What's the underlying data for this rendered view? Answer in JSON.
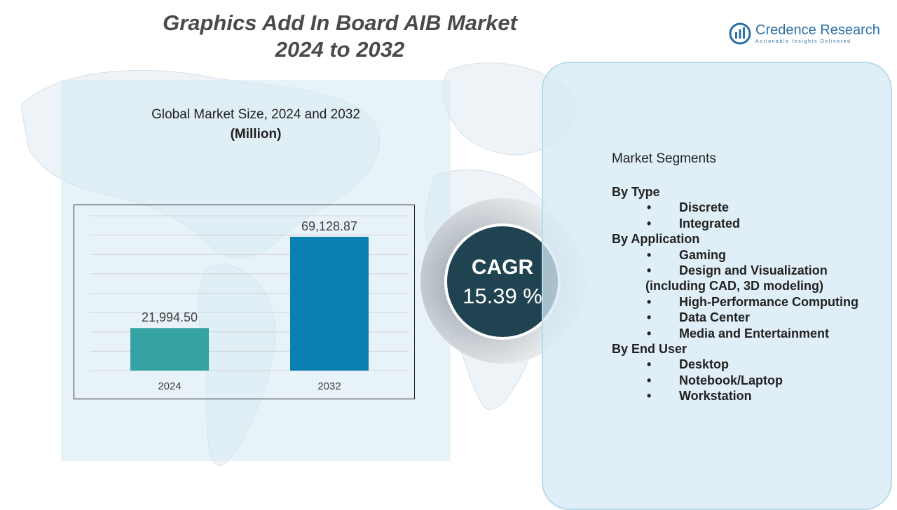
{
  "title": {
    "line1": "Graphics Add In Board AIB Market",
    "line2": "2024 to 2032"
  },
  "logo": {
    "name": "Credence Research",
    "tagline": "Actionable Insights Delivered"
  },
  "chart_data": {
    "type": "bar",
    "title": "Global Market Size, 2024 and 2032",
    "unit": "(Million)",
    "categories": [
      "2024",
      "2032"
    ],
    "values": [
      21994.5,
      69128.87
    ],
    "value_labels": [
      "21,994.50",
      "69,128.87"
    ],
    "colors": [
      "#35a3a3",
      "#0a7fb1"
    ],
    "ylim": [
      0,
      80000
    ],
    "grid": true
  },
  "cagr": {
    "label": "CAGR",
    "value": "15.39 %"
  },
  "segments": {
    "heading": "Market Segments",
    "groups": [
      {
        "title": "By Type",
        "items": [
          {
            "text": "Discrete",
            "bullet": "•"
          },
          {
            "text": "Integrated",
            "bullet": "•"
          }
        ]
      },
      {
        "title": "By Application",
        "items": [
          {
            "text": "Gaming",
            "bullet": "•"
          },
          {
            "text": "Design and Visualization",
            "bullet": "•"
          },
          {
            "text": "(including CAD, 3D modeling)",
            "bullet": "",
            "continuation": true
          },
          {
            "text": "High-Performance Computing",
            "bullet": "•"
          },
          {
            "text": "Data Center",
            "bullet": "•"
          },
          {
            "text": "Media and Entertainment",
            "bullet": "•"
          }
        ]
      },
      {
        "title": "By End User",
        "items": [
          {
            "text": "Desktop",
            "bullet": "•"
          },
          {
            "text": "Notebook/Laptop",
            "bullet": "•"
          },
          {
            "text": "Workstation",
            "bullet": "•"
          }
        ]
      }
    ]
  }
}
